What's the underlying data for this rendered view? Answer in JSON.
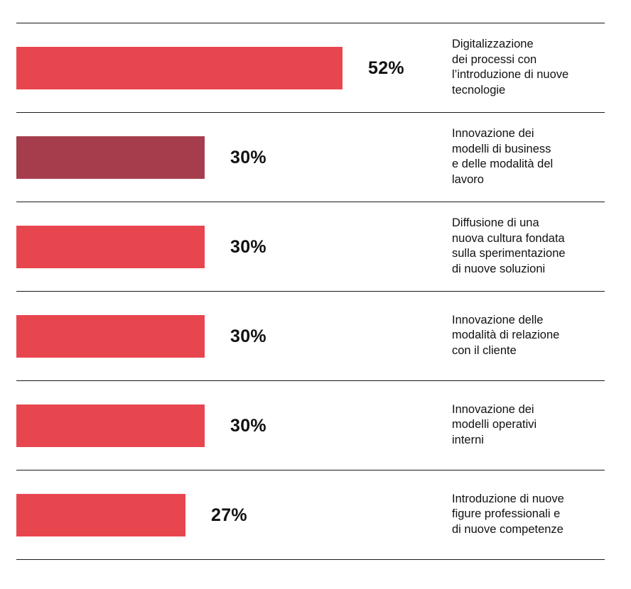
{
  "chart_data": {
    "type": "bar",
    "orientation": "horizontal",
    "categories": [
      "Digitalizzazione\ndei processi con\nl’introduzione di nuove\ntecnologie",
      "Innovazione dei\nmodelli di business\ne delle modalità del\nlavoro",
      "Diffusione di una\nnuova cultura fondata\nsulla sperimentazione\ndi nuove soluzioni",
      "Innovazione delle\nmodalità di relazione\ncon il cliente",
      "Innovazione dei\nmodelli operativi\ninterni",
      "Introduzione di nuove\nfigure professionali e\ndi nuove competenze"
    ],
    "values": [
      52,
      30,
      30,
      30,
      30,
      27
    ],
    "value_labels": [
      "52%",
      "30%",
      "30%",
      "30%",
      "30%",
      "27%"
    ],
    "unit": "%",
    "bar_colors": [
      "#e8464f",
      "#a63d4d",
      "#e8464f",
      "#e8464f",
      "#e8464f",
      "#e8464f"
    ],
    "grid": false,
    "legend": "none"
  }
}
